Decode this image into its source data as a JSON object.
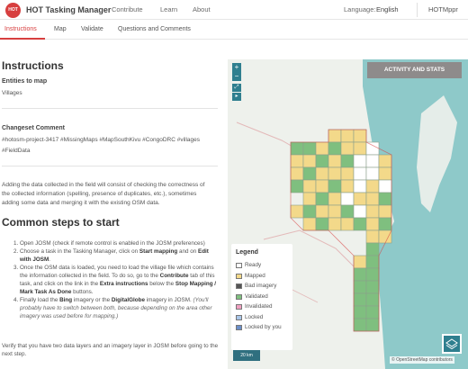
{
  "header": {
    "logo_text": "HOT",
    "brand": "HOT Tasking Manager",
    "nav": [
      "Contribute",
      "Learn",
      "About"
    ],
    "language_label": "Language:",
    "language_value": "English",
    "user": "HOTMppr"
  },
  "tabs": [
    "Instructions",
    "Map",
    "Validate",
    "Questions and Comments"
  ],
  "instructions": {
    "title": "Instructions",
    "entities_heading": "Entities to map",
    "entities_value": "Villages",
    "changeset_heading": "Changeset Comment",
    "changeset_value": "#hotosm-project-3417 #MissingMaps #MapSouthKivu #CongoDRC #villages",
    "changeset_value_2": "#FieldData",
    "description_1": "Adding the data collected in the field will consist of checking the correctness of",
    "description_2": "the collected information (spelling, presence of duplicates, etc.), sometimes",
    "description_3": "adding some data and merging it with the existing OSM data.",
    "steps_title": "Common steps to start",
    "footer": "Verify that you have two data layers and an imagery layer in JOSM before going to the next step."
  },
  "steps": {
    "s1": "Open JOSM (check if remote control is enabled in the JOSM preferences)",
    "s2a": "Choose a task in the Tasking Manager, click on ",
    "s2b": "Start mapping",
    "s2c": " and on ",
    "s2d": "Edit with JOSM",
    "s2e": ".",
    "s3a": "Once the OSM data is loaded, you need to load the village file which contains the information collected in the field. To do so, go to the ",
    "s3b": "Contribute",
    "s3c": " tab of this task, and click on the link in the ",
    "s3d": "Extra instructions",
    "s3e": " below the ",
    "s3f": "Stop Mapping / Mark Task As Done",
    "s3g": " buttons.",
    "s4a": "Finally load the ",
    "s4b": "Bing",
    "s4c": " imagery or the ",
    "s4d": "DigitalGlobe",
    "s4e": " imagery in JOSM. ",
    "s4f": "(You'll probably have to switch between both, because depending on the area other imagery was used before for mapping.)"
  },
  "map": {
    "zoom_in": "+",
    "zoom_out": "−",
    "activity_button": "ACTIVITY AND STATS",
    "scale": "20 km",
    "attribution": "© OpenStreetMap contributors",
    "colors": {
      "water": "#8ec9c9",
      "land": "#eef1ec",
      "mapped": "#f3d98a",
      "validated": "#7fbf7f",
      "ready": "#ffffff",
      "accent": "#d73f3f",
      "control": "#2f7f8f"
    }
  },
  "legend": {
    "title": "Legend",
    "items": [
      {
        "label": "Ready",
        "color": "#ffffff"
      },
      {
        "label": "Mapped",
        "color": "#f3d98a"
      },
      {
        "label": "Bad imagery",
        "color": "#555555"
      },
      {
        "label": "Validated",
        "color": "#7fbf7f"
      },
      {
        "label": "Invalidated",
        "color": "#f0a0c0"
      },
      {
        "label": "Locked",
        "color": "#a9c6e8"
      },
      {
        "label": "Locked by you",
        "color": "#6b8fc9"
      }
    ]
  }
}
